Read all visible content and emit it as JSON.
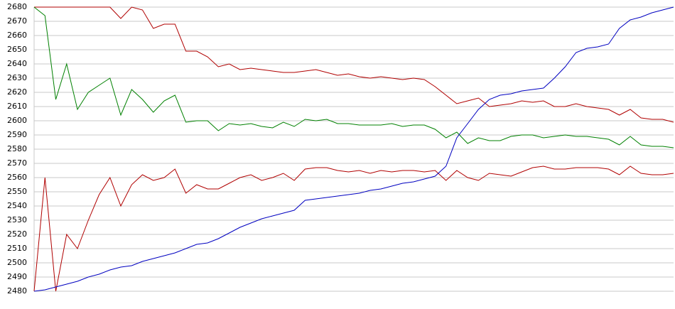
{
  "chart_data": {
    "type": "line",
    "ylim": [
      2480,
      2680
    ],
    "yticks": [
      2480,
      2490,
      2500,
      2510,
      2520,
      2530,
      2540,
      2550,
      2560,
      2570,
      2580,
      2590,
      2600,
      2610,
      2620,
      2630,
      2640,
      2650,
      2660,
      2670,
      2680
    ],
    "grid": true,
    "series": [
      {
        "color": "#b00000",
        "values": [
          2680,
          2680,
          2680,
          2680,
          2680,
          2680,
          2680,
          2680,
          2672,
          2680,
          2678,
          2665,
          2668,
          2668,
          2649,
          2649,
          2645,
          2638,
          2640,
          2636,
          2637,
          2636,
          2635,
          2634,
          2634,
          2635,
          2636,
          2634,
          2632,
          2633,
          2631,
          2630,
          2631,
          2630,
          2629,
          2630,
          2629,
          2624,
          2618,
          2612,
          2614,
          2616,
          2610,
          2611,
          2612,
          2614,
          2613,
          2614,
          2610,
          2610,
          2612,
          2610,
          2609,
          2608,
          2604,
          2608,
          2602,
          2601,
          2601,
          2599
        ]
      },
      {
        "color": "#008000",
        "values": [
          2680,
          2674,
          2615,
          2640,
          2608,
          2620,
          2625,
          2630,
          2604,
          2622,
          2615,
          2606,
          2614,
          2618,
          2599,
          2600,
          2600,
          2593,
          2598,
          2597,
          2598,
          2596,
          2595,
          2599,
          2596,
          2601,
          2600,
          2601,
          2598,
          2598,
          2597,
          2597,
          2597,
          2598,
          2596,
          2597,
          2597,
          2594,
          2588,
          2592,
          2584,
          2588,
          2586,
          2586,
          2589,
          2590,
          2590,
          2588,
          2589,
          2590,
          2589,
          2589,
          2588,
          2587,
          2583,
          2589,
          2583,
          2582,
          2582,
          2581
        ]
      },
      {
        "color": "#b00000",
        "values": [
          2480,
          2560,
          2480,
          2520,
          2510,
          2530,
          2548,
          2560,
          2540,
          2555,
          2562,
          2558,
          2560,
          2566,
          2549,
          2555,
          2552,
          2552,
          2556,
          2560,
          2562,
          2558,
          2560,
          2563,
          2558,
          2566,
          2567,
          2567,
          2565,
          2564,
          2565,
          2563,
          2565,
          2564,
          2565,
          2565,
          2564,
          2565,
          2558,
          2565,
          2560,
          2558,
          2563,
          2562,
          2561,
          2564,
          2567,
          2568,
          2566,
          2566,
          2567,
          2567,
          2567,
          2566,
          2562,
          2568,
          2563,
          2562,
          2562,
          2563
        ]
      },
      {
        "color": "#0000c0",
        "values": [
          2480,
          2481,
          2483,
          2485,
          2487,
          2490,
          2492,
          2495,
          2497,
          2498,
          2501,
          2503,
          2505,
          2507,
          2510,
          2513,
          2514,
          2517,
          2521,
          2525,
          2528,
          2531,
          2533,
          2535,
          2537,
          2544,
          2545,
          2546,
          2547,
          2548,
          2549,
          2551,
          2552,
          2554,
          2556,
          2557,
          2559,
          2561,
          2568,
          2588,
          2598,
          2608,
          2615,
          2618,
          2619,
          2621,
          2622,
          2623,
          2630,
          2638,
          2648,
          2651,
          2652,
          2654,
          2665,
          2671,
          2673,
          2676,
          2678,
          2680
        ]
      }
    ]
  }
}
